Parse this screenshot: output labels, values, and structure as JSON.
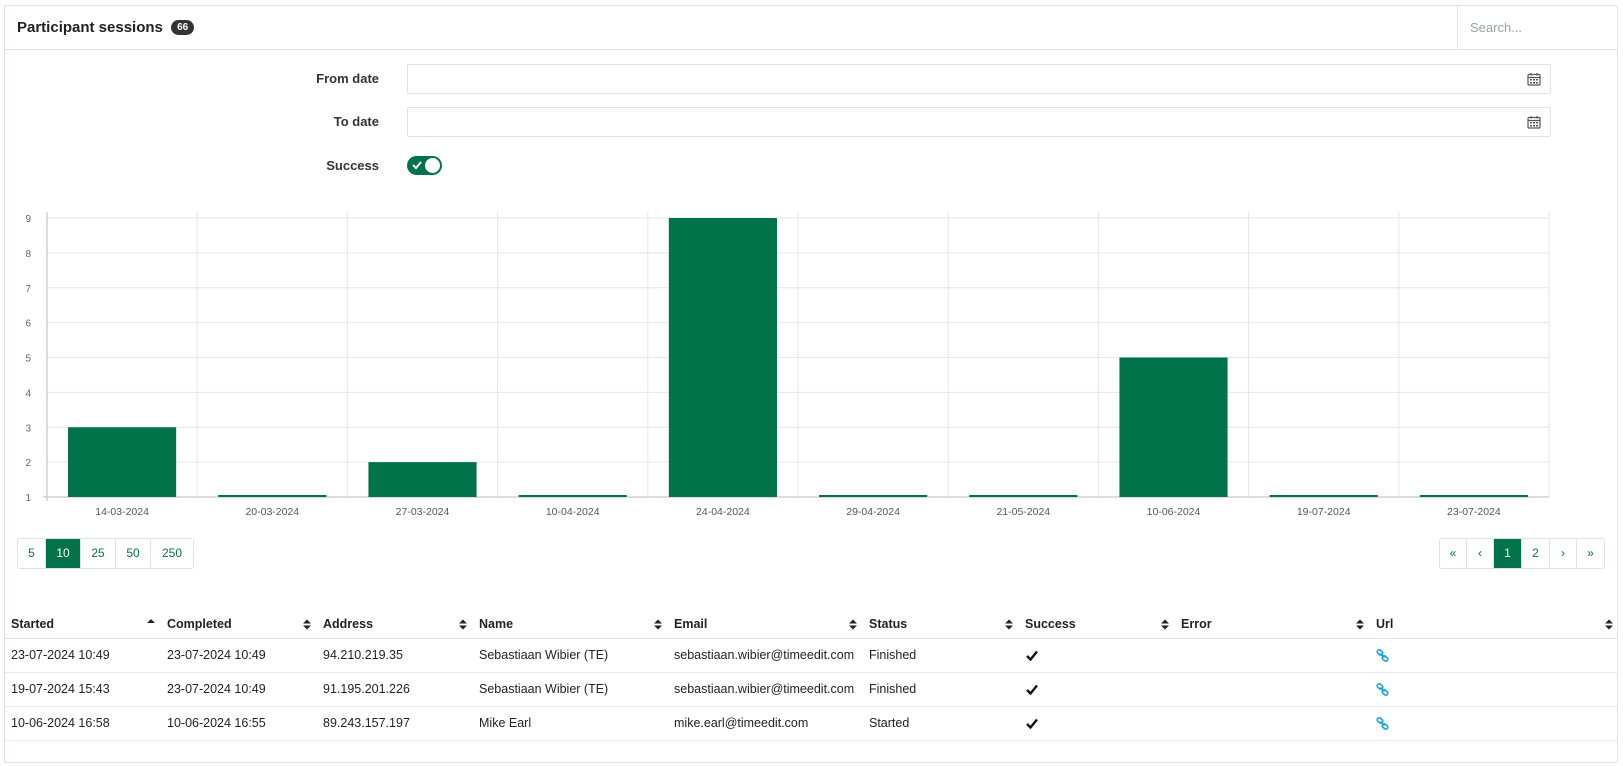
{
  "header": {
    "title": "Participant sessions",
    "count": "66",
    "search_placeholder": "Search..."
  },
  "filters": {
    "from_label": "From date",
    "from_value": "",
    "to_label": "To date",
    "to_value": "",
    "success_label": "Success",
    "success_on": true
  },
  "chart_data": {
    "type": "bar",
    "categories": [
      "14-03-2024",
      "20-03-2024",
      "27-03-2024",
      "10-04-2024",
      "24-04-2024",
      "29-04-2024",
      "21-05-2024",
      "10-06-2024",
      "19-07-2024",
      "23-07-2024"
    ],
    "values": [
      3,
      1,
      2,
      1,
      9,
      1,
      1,
      5,
      1,
      1
    ],
    "yticks": [
      "1",
      "2",
      "3",
      "4",
      "5",
      "6",
      "7",
      "8",
      "9"
    ],
    "ylim": [
      1,
      9
    ],
    "grid": true,
    "color": "#00734a",
    "title": "",
    "xlabel": "",
    "ylabel": ""
  },
  "page_size": {
    "options": [
      "5",
      "10",
      "25",
      "50",
      "250"
    ],
    "selected": "10"
  },
  "pagination": {
    "first": "«",
    "prev": "‹",
    "pages": [
      "1",
      "2"
    ],
    "current": "1",
    "next": "›",
    "last": "»"
  },
  "table": {
    "columns": [
      "Started",
      "Completed",
      "Address",
      "Name",
      "Email",
      "Status",
      "Success",
      "Error",
      "Url"
    ],
    "sorted_column": "Started",
    "rows": [
      {
        "started": "23-07-2024 10:49",
        "completed": "23-07-2024 10:49",
        "address": "94.210.219.35",
        "name": "Sebastiaan Wibier (TE)",
        "email": "sebastiaan.wibier@timeedit.com",
        "status": "Finished",
        "success": true,
        "error": ""
      },
      {
        "started": "19-07-2024 15:43",
        "completed": "23-07-2024 10:49",
        "address": "91.195.201.226",
        "name": "Sebastiaan Wibier (TE)",
        "email": "sebastiaan.wibier@timeedit.com",
        "status": "Finished",
        "success": true,
        "error": ""
      },
      {
        "started": "10-06-2024 16:58",
        "completed": "10-06-2024 16:55",
        "address": "89.243.157.197",
        "name": "Mike Earl",
        "email": "mike.earl@timeedit.com",
        "status": "Started",
        "success": true,
        "error": ""
      }
    ]
  },
  "icons": {
    "calendar": "calendar-icon",
    "sort": "sort-icon",
    "check": "check-icon",
    "link": "link-icon"
  },
  "colors": {
    "accent": "#00734a",
    "link": "#1aa3d9",
    "border": "#d9e4ec"
  }
}
